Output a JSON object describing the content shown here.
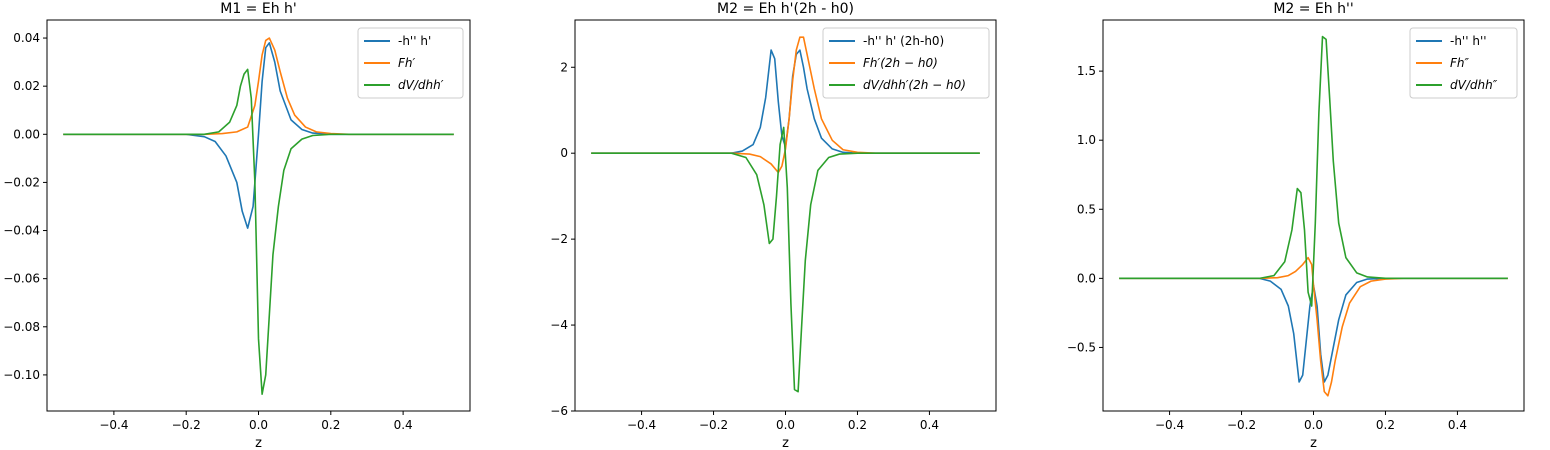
{
  "chart_data": [
    {
      "type": "line",
      "title": "M1 = Eh h'",
      "xlabel": "z",
      "ylabel": "",
      "xlim": [
        -0.585,
        0.585
      ],
      "ylim": [
        -0.115,
        0.0475
      ],
      "xticks": [
        -0.4,
        -0.2,
        0.0,
        0.2,
        0.4
      ],
      "xtick_labels": [
        "−0.4",
        "−0.2",
        "0.0",
        "0.2",
        "0.4"
      ],
      "yticks": [
        -0.1,
        -0.08,
        -0.06,
        -0.04,
        -0.02,
        0.0,
        0.02,
        0.04
      ],
      "ytick_labels": [
        "−0.10",
        "−0.08",
        "−0.06",
        "−0.04",
        "−0.02",
        "0.00",
        "0.02",
        "0.04"
      ],
      "legend_position": "top-right",
      "grid": false,
      "series": [
        {
          "name": "-h'' h'",
          "color": "#1f77b4",
          "x": [
            -0.54,
            -0.2,
            -0.15,
            -0.12,
            -0.09,
            -0.06,
            -0.045,
            -0.03,
            -0.015,
            0.0,
            0.01,
            0.02,
            0.03,
            0.045,
            0.06,
            0.09,
            0.12,
            0.15,
            0.2,
            0.54
          ],
          "y": [
            0,
            0,
            -0.001,
            -0.003,
            -0.009,
            -0.02,
            -0.032,
            -0.039,
            -0.03,
            0.0,
            0.022,
            0.036,
            0.038,
            0.03,
            0.018,
            0.006,
            0.002,
            0.0005,
            0,
            0
          ]
        },
        {
          "name": "Fh′",
          "color": "#ff7f0e",
          "x": [
            -0.54,
            -0.15,
            -0.1,
            -0.06,
            -0.03,
            -0.01,
            0.0,
            0.01,
            0.02,
            0.03,
            0.045,
            0.06,
            0.08,
            0.1,
            0.13,
            0.16,
            0.2,
            0.25,
            0.54
          ],
          "y": [
            0,
            0,
            0.0003,
            0.001,
            0.003,
            0.012,
            0.022,
            0.033,
            0.039,
            0.04,
            0.035,
            0.026,
            0.015,
            0.008,
            0.003,
            0.001,
            0.0003,
            0,
            0
          ]
        },
        {
          "name": "dV/dhh′",
          "color": "#2ca02c",
          "x": [
            -0.54,
            -0.15,
            -0.11,
            -0.08,
            -0.06,
            -0.05,
            -0.04,
            -0.03,
            -0.02,
            -0.01,
            0.0,
            0.01,
            0.02,
            0.03,
            0.04,
            0.055,
            0.07,
            0.09,
            0.12,
            0.15,
            0.2,
            0.54
          ],
          "y": [
            0,
            0,
            0.001,
            0.005,
            0.012,
            0.02,
            0.025,
            0.027,
            0.015,
            -0.02,
            -0.085,
            -0.108,
            -0.1,
            -0.075,
            -0.05,
            -0.03,
            -0.015,
            -0.006,
            -0.002,
            -0.0005,
            0,
            0
          ]
        }
      ]
    },
    {
      "type": "line",
      "title": "M2 = Eh h'(2h - h0)",
      "xlabel": "z",
      "ylabel": "",
      "xlim": [
        -0.585,
        0.585
      ],
      "ylim": [
        -6.0,
        3.1
      ],
      "xticks": [
        -0.4,
        -0.2,
        0.0,
        0.2,
        0.4
      ],
      "xtick_labels": [
        "−0.4",
        "−0.2",
        "0.0",
        "0.2",
        "0.4"
      ],
      "yticks": [
        -6,
        -4,
        -2,
        0,
        2
      ],
      "ytick_labels": [
        "−6",
        "−4",
        "−2",
        "0",
        "2"
      ],
      "legend_position": "top-right",
      "grid": false,
      "series": [
        {
          "name": "-h'' h' (2h-h0)",
          "color": "#1f77b4",
          "x": [
            -0.54,
            -0.15,
            -0.12,
            -0.09,
            -0.07,
            -0.055,
            -0.04,
            -0.03,
            -0.02,
            -0.01,
            0.0,
            0.01,
            0.02,
            0.03,
            0.04,
            0.05,
            0.06,
            0.08,
            0.1,
            0.13,
            0.16,
            0.2,
            0.54
          ],
          "y": [
            0,
            0,
            0.05,
            0.2,
            0.6,
            1.3,
            2.4,
            2.2,
            1.2,
            0.4,
            0.15,
            0.8,
            1.8,
            2.3,
            2.4,
            2.0,
            1.5,
            0.8,
            0.35,
            0.1,
            0.02,
            0,
            0
          ]
        },
        {
          "name": "Fh′(2h − h0)",
          "color": "#ff7f0e",
          "x": [
            -0.54,
            -0.15,
            -0.1,
            -0.07,
            -0.04,
            -0.02,
            -0.01,
            0.0,
            0.01,
            0.02,
            0.03,
            0.04,
            0.05,
            0.06,
            0.08,
            0.1,
            0.13,
            0.16,
            0.2,
            0.25,
            0.54
          ],
          "y": [
            0,
            0,
            -0.02,
            -0.08,
            -0.25,
            -0.45,
            -0.3,
            0.1,
            0.8,
            1.7,
            2.4,
            2.7,
            2.7,
            2.3,
            1.5,
            0.8,
            0.3,
            0.08,
            0.02,
            0,
            0
          ]
        },
        {
          "name": "dV/dhh′(2h − h0)",
          "color": "#2ca02c",
          "x": [
            -0.54,
            -0.15,
            -0.11,
            -0.08,
            -0.06,
            -0.045,
            -0.035,
            -0.025,
            -0.015,
            -0.005,
            0.005,
            0.015,
            0.025,
            0.035,
            0.045,
            0.055,
            0.07,
            0.09,
            0.12,
            0.15,
            0.2,
            0.54
          ],
          "y": [
            0,
            0,
            -0.1,
            -0.5,
            -1.2,
            -2.1,
            -2.0,
            -1.0,
            0.2,
            0.6,
            -0.8,
            -3.5,
            -5.5,
            -5.55,
            -4.0,
            -2.5,
            -1.2,
            -0.4,
            -0.1,
            -0.02,
            0,
            0
          ]
        }
      ]
    },
    {
      "type": "line",
      "title": "M2 = Eh h''",
      "xlabel": "z",
      "ylabel": "",
      "xlim": [
        -0.585,
        0.585
      ],
      "ylim": [
        -0.96,
        1.87
      ],
      "xticks": [
        -0.4,
        -0.2,
        0.0,
        0.2,
        0.4
      ],
      "xtick_labels": [
        "−0.4",
        "−0.2",
        "0.0",
        "0.2",
        "0.4"
      ],
      "yticks": [
        -0.5,
        0.0,
        0.5,
        1.0,
        1.5
      ],
      "ytick_labels": [
        "−0.5",
        "0.0",
        "0.5",
        "1.0",
        "1.5"
      ],
      "legend_position": "top-right",
      "grid": false,
      "series": [
        {
          "name": "-h'' h''",
          "color": "#1f77b4",
          "x": [
            -0.54,
            -0.15,
            -0.12,
            -0.09,
            -0.07,
            -0.055,
            -0.04,
            -0.03,
            -0.02,
            -0.01,
            0.0,
            0.01,
            0.02,
            0.03,
            0.04,
            0.055,
            0.07,
            0.09,
            0.12,
            0.15,
            0.2,
            0.54
          ],
          "y": [
            0,
            0,
            -0.02,
            -0.08,
            -0.2,
            -0.4,
            -0.75,
            -0.7,
            -0.45,
            -0.2,
            -0.05,
            -0.2,
            -0.55,
            -0.75,
            -0.7,
            -0.5,
            -0.3,
            -0.12,
            -0.03,
            -0.005,
            0,
            0
          ]
        },
        {
          "name": "Fh″",
          "color": "#ff7f0e",
          "x": [
            -0.54,
            -0.15,
            -0.1,
            -0.07,
            -0.05,
            -0.03,
            -0.015,
            -0.005,
            0.0,
            0.01,
            0.02,
            0.03,
            0.04,
            0.05,
            0.06,
            0.08,
            0.1,
            0.13,
            0.16,
            0.2,
            0.25,
            0.54
          ],
          "y": [
            0,
            0,
            0.005,
            0.02,
            0.05,
            0.1,
            0.15,
            0.1,
            -0.05,
            -0.3,
            -0.6,
            -0.82,
            -0.85,
            -0.75,
            -0.6,
            -0.35,
            -0.18,
            -0.06,
            -0.02,
            -0.005,
            0,
            0
          ]
        },
        {
          "name": "dV/dhh″",
          "color": "#2ca02c",
          "x": [
            -0.54,
            -0.15,
            -0.11,
            -0.08,
            -0.06,
            -0.045,
            -0.035,
            -0.025,
            -0.015,
            -0.005,
            0.005,
            0.015,
            0.025,
            0.035,
            0.045,
            0.055,
            0.07,
            0.09,
            0.12,
            0.15,
            0.2,
            0.54
          ],
          "y": [
            0,
            0,
            0.02,
            0.12,
            0.35,
            0.65,
            0.62,
            0.35,
            -0.1,
            -0.2,
            0.4,
            1.2,
            1.75,
            1.73,
            1.3,
            0.85,
            0.4,
            0.15,
            0.04,
            0.01,
            0,
            0
          ]
        }
      ]
    }
  ]
}
